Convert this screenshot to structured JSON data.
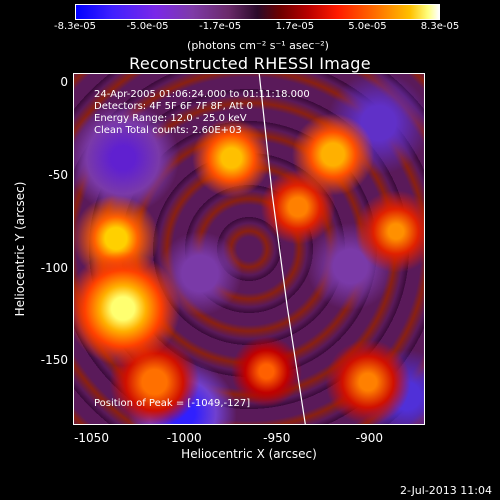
{
  "colorbar": {
    "ticks": [
      "-8.3e-05",
      "-5.0e-05",
      "-1.7e-05",
      "1.7e-05",
      "5.0e-05",
      "8.3e-05"
    ],
    "units": "(photons cm⁻² s⁻¹ asec⁻²)"
  },
  "annotations": {
    "time": "24-Apr-2005 01:06:24.000 to 01:11:18.000",
    "detectors": "Detectors: 4F 5F 6F 7F 8F, Att 0",
    "energy": "Energy Range: 12.0 - 25.0 keV",
    "algorithm": "Clean     Total counts: 2.60E+03",
    "peak": "Position of Peak = [-1049,-127]"
  },
  "footer": {
    "timestamp": "2-Jul-2013 11:04"
  },
  "chart_data": {
    "type": "heatmap",
    "title": "Reconstructed RHESSI Image",
    "xlabel": "Heliocentric X (arcsec)",
    "ylabel": "Heliocentric Y (arcsec)",
    "xlim": [
      -1060,
      -870
    ],
    "ylim": [
      -185,
      5
    ],
    "x_ticks": [
      "-1050",
      "-1000",
      "-950",
      "-900"
    ],
    "y_ticks": [
      "0",
      "-50",
      "-100",
      "-150"
    ],
    "color_range": [
      -8.3e-05,
      8.3e-05
    ],
    "peak": [
      -1049,
      -127
    ],
    "limb": [
      [
        -960,
        5
      ],
      [
        -953,
        -60
      ],
      [
        -945,
        -120
      ],
      [
        -935,
        -185
      ]
    ]
  }
}
